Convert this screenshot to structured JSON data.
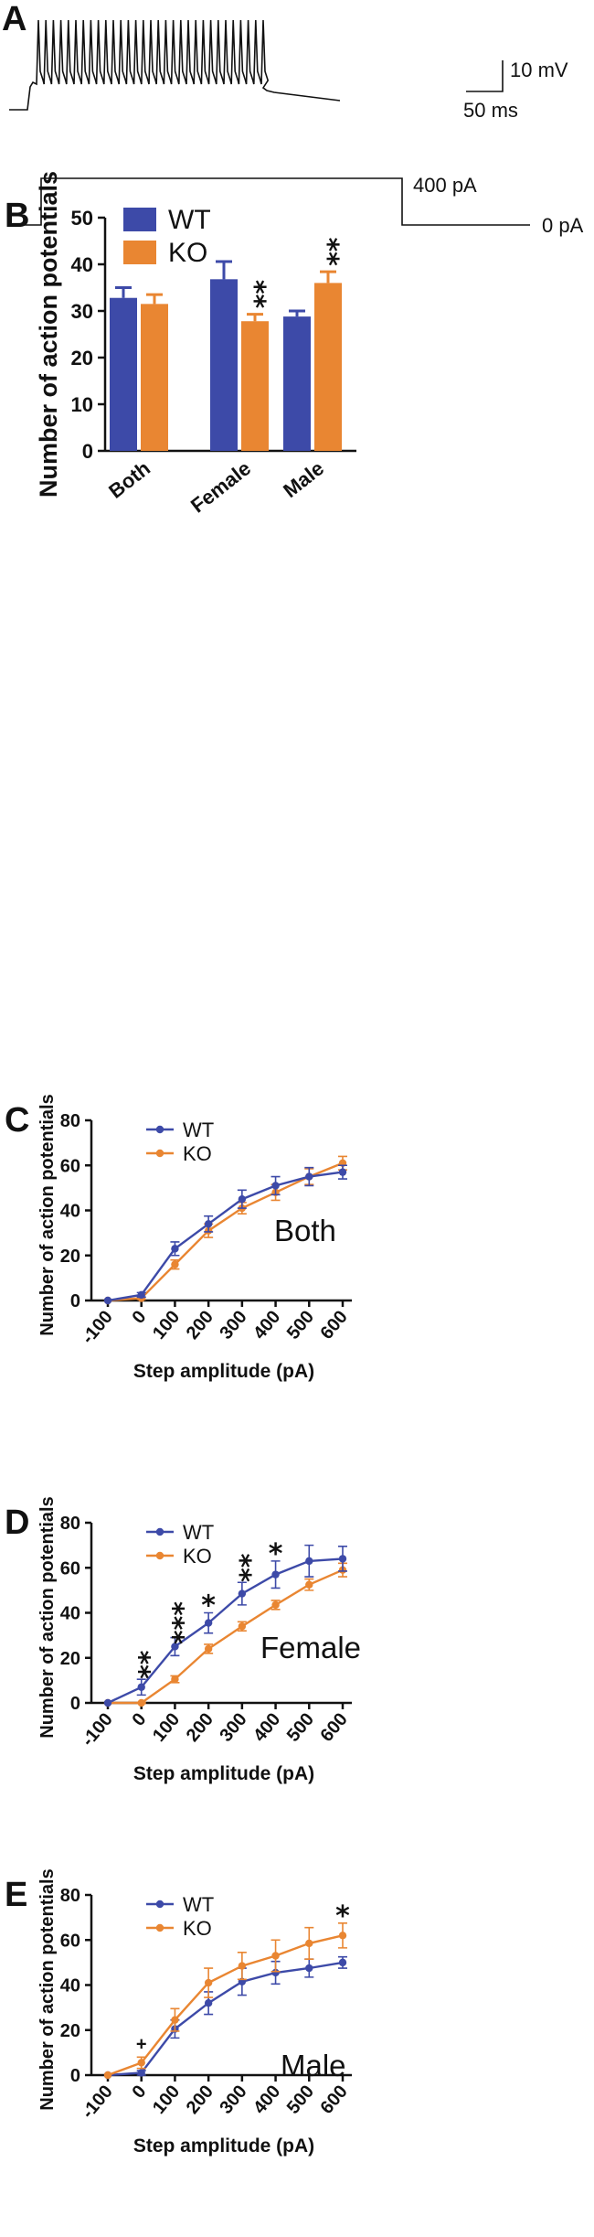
{
  "colors": {
    "wt": "#3d4aa8",
    "ko": "#e98632",
    "axis": "#111111"
  },
  "panel_a": {
    "letter": "A",
    "scale_mv": "10 mV",
    "scale_ms": "50 ms",
    "step_label": "400 pA",
    "baseline_label": "0 pA",
    "spike_count": 31
  },
  "chart_data": [
    {
      "panel": "B",
      "type": "bar",
      "title": "",
      "xlabel": "",
      "ylabel": "Number of action potentials",
      "ylim": [
        0,
        50
      ],
      "yticks": [
        0,
        10,
        20,
        30,
        40,
        50
      ],
      "categories": [
        "Both",
        "Female",
        "Male"
      ],
      "series": [
        {
          "name": "WT",
          "values": [
            32.8,
            36.8,
            28.8
          ],
          "errors": [
            2.2,
            3.8,
            1.2
          ]
        },
        {
          "name": "KO",
          "values": [
            31.5,
            27.8,
            36.0
          ],
          "errors": [
            2.0,
            1.5,
            2.4
          ]
        }
      ],
      "annotations": [
        {
          "series": "KO",
          "category": "Female",
          "text": "**"
        },
        {
          "series": "KO",
          "category": "Male",
          "text": "**"
        }
      ],
      "legend": "top-left"
    },
    {
      "panel": "C",
      "type": "line",
      "ylabel": "Number of action potentials",
      "xlabel": "Step amplitude (pA)",
      "ylim": [
        0,
        80
      ],
      "yticks": [
        0,
        20,
        40,
        60,
        80
      ],
      "x": [
        -100,
        0,
        100,
        200,
        300,
        400,
        500,
        600
      ],
      "series": [
        {
          "name": "WT",
          "values": [
            0,
            2.5,
            23,
            34,
            45,
            51,
            55,
            57
          ],
          "errors": [
            0,
            1,
            3,
            3.5,
            4,
            4,
            4,
            3
          ]
        },
        {
          "name": "KO",
          "values": [
            0,
            1,
            16,
            31,
            41,
            48,
            55,
            61
          ],
          "errors": [
            0,
            0.5,
            2,
            3,
            2.5,
            3.5,
            3.5,
            3
          ]
        }
      ],
      "inset_label": "Both",
      "annotations": [],
      "legend": "top-left"
    },
    {
      "panel": "D",
      "type": "line",
      "ylabel": "Number of action potentials",
      "xlabel": "Step amplitude (pA)",
      "ylim": [
        0,
        80
      ],
      "yticks": [
        0,
        20,
        40,
        60,
        80
      ],
      "x": [
        -100,
        0,
        100,
        200,
        300,
        400,
        500,
        600
      ],
      "series": [
        {
          "name": "WT",
          "values": [
            0,
            7,
            25,
            35.5,
            48.5,
            57,
            63,
            64
          ],
          "errors": [
            0,
            3.5,
            4,
            4.5,
            5,
            6,
            7,
            5.5
          ]
        },
        {
          "name": "KO",
          "values": [
            0,
            0,
            10.5,
            24,
            34,
            43.5,
            52.5,
            59
          ],
          "errors": [
            0,
            0.3,
            1.5,
            2,
            2,
            2,
            2.5,
            3
          ]
        }
      ],
      "inset_label": "Female",
      "annotations": [
        {
          "x": 0,
          "text": "**"
        },
        {
          "x": 100,
          "text": "***"
        },
        {
          "x": 200,
          "text": "*"
        },
        {
          "x": 300,
          "text": "**"
        },
        {
          "x": 400,
          "text": "*"
        }
      ],
      "legend": "top-left"
    },
    {
      "panel": "E",
      "type": "line",
      "ylabel": "Number of action potentials",
      "xlabel": "Step amplitude (pA)",
      "ylim": [
        0,
        80
      ],
      "yticks": [
        0,
        20,
        40,
        60,
        80
      ],
      "x": [
        -100,
        0,
        100,
        200,
        300,
        400,
        500,
        600
      ],
      "series": [
        {
          "name": "WT",
          "values": [
            0,
            1,
            20.5,
            32,
            41.5,
            45.5,
            47.5,
            50
          ],
          "errors": [
            0,
            1,
            4,
            5,
            6,
            5,
            4,
            2.5
          ]
        },
        {
          "name": "KO",
          "values": [
            0,
            5.5,
            24.5,
            41,
            48.5,
            53,
            58.5,
            62
          ],
          "errors": [
            0,
            2.5,
            5,
            6.5,
            6,
            7,
            7,
            5.5
          ]
        }
      ],
      "inset_label": "Male",
      "annotations": [
        {
          "x": 0,
          "text": "+"
        },
        {
          "x": 600,
          "text": "*"
        }
      ],
      "legend": "top-left"
    }
  ]
}
